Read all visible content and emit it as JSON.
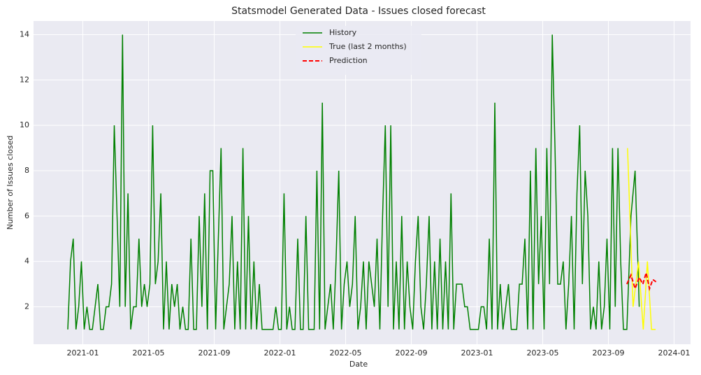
{
  "chart_data": {
    "type": "line",
    "title": "Statsmodel Generated Data - Issues closed forecast",
    "x_label": "Date",
    "y_label": "Number of Issues closed",
    "grid": true,
    "legend": "upper center",
    "xlim": [
      "2020-10",
      "2024-02"
    ],
    "xticks": [
      "2021-01",
      "2021-05",
      "2021-09",
      "2022-01",
      "2022-05",
      "2022-09",
      "2023-01",
      "2023-05",
      "2023-09",
      "2024-01"
    ],
    "ylim": [
      0.35,
      14.6
    ],
    "yticks": [
      2,
      4,
      6,
      8,
      10,
      12,
      14
    ],
    "series": [
      {
        "name": "History",
        "color": "#008000",
        "dash": false,
        "x": [
          "2020-12",
          "2020-12",
          "2020-12",
          "2020-12",
          "2020-12",
          "2020-12",
          "2021-01",
          "2021-01",
          "2021-01",
          "2021-01",
          "2021-01",
          "2021-01",
          "2021-02",
          "2021-02",
          "2021-02",
          "2021-02",
          "2021-02",
          "2021-02",
          "2021-03",
          "2021-03",
          "2021-03",
          "2021-03",
          "2021-03",
          "2021-03",
          "2021-04",
          "2021-04",
          "2021-04",
          "2021-04",
          "2021-04",
          "2021-04",
          "2021-05",
          "2021-05",
          "2021-05",
          "2021-05",
          "2021-05",
          "2021-05",
          "2021-06",
          "2021-06",
          "2021-06",
          "2021-06",
          "2021-06",
          "2021-06",
          "2021-07",
          "2021-07",
          "2021-07",
          "2021-07",
          "2021-07",
          "2021-07",
          "2021-08",
          "2021-08",
          "2021-08",
          "2021-08",
          "2021-08",
          "2021-08",
          "2021-09",
          "2021-09",
          "2021-09",
          "2021-09",
          "2021-09",
          "2021-09",
          "2021-10",
          "2021-10",
          "2021-10",
          "2021-10",
          "2021-10",
          "2021-10",
          "2021-11",
          "2021-11",
          "2021-11",
          "2021-11",
          "2021-11",
          "2021-11",
          "2021-12",
          "2021-12",
          "2021-12",
          "2021-12",
          "2021-12",
          "2021-12",
          "2022-01",
          "2022-01",
          "2022-01",
          "2022-01",
          "2022-01",
          "2022-01",
          "2022-02",
          "2022-02",
          "2022-02",
          "2022-02",
          "2022-02",
          "2022-02",
          "2022-03",
          "2022-03",
          "2022-03",
          "2022-03",
          "2022-03",
          "2022-03",
          "2022-04",
          "2022-04",
          "2022-04",
          "2022-04",
          "2022-04",
          "2022-04",
          "2022-05",
          "2022-05",
          "2022-05",
          "2022-05",
          "2022-05",
          "2022-05",
          "2022-06",
          "2022-06",
          "2022-06",
          "2022-06",
          "2022-06",
          "2022-06",
          "2022-07",
          "2022-07",
          "2022-07",
          "2022-07",
          "2022-07",
          "2022-07",
          "2022-08",
          "2022-08",
          "2022-08",
          "2022-08",
          "2022-08",
          "2022-08",
          "2022-09",
          "2022-09",
          "2022-09",
          "2022-09",
          "2022-09",
          "2022-09",
          "2022-10",
          "2022-10",
          "2022-10",
          "2022-10",
          "2022-10",
          "2022-10",
          "2022-11",
          "2022-11",
          "2022-11",
          "2022-11",
          "2022-11",
          "2022-11",
          "2022-12",
          "2022-12",
          "2022-12",
          "2022-12",
          "2022-12",
          "2022-12",
          "2023-01",
          "2023-01",
          "2023-01",
          "2023-01",
          "2023-01",
          "2023-01",
          "2023-02",
          "2023-02",
          "2023-02",
          "2023-02",
          "2023-02",
          "2023-02",
          "2023-03",
          "2023-03",
          "2023-03",
          "2023-03",
          "2023-03",
          "2023-03",
          "2023-04",
          "2023-04",
          "2023-04",
          "2023-04",
          "2023-04",
          "2023-04",
          "2023-05",
          "2023-05",
          "2023-05",
          "2023-05",
          "2023-05",
          "2023-05",
          "2023-06",
          "2023-06",
          "2023-06",
          "2023-06",
          "2023-06",
          "2023-06",
          "2023-07",
          "2023-07",
          "2023-07",
          "2023-07",
          "2023-07",
          "2023-07",
          "2023-08",
          "2023-08",
          "2023-08",
          "2023-08",
          "2023-08",
          "2023-08",
          "2023-09",
          "2023-09",
          "2023-09",
          "2023-09",
          "2023-09",
          "2023-09",
          "2023-10",
          "2023-10",
          "2023-10",
          "2023-10"
        ],
        "values": [
          1,
          4,
          5,
          1,
          2,
          4,
          1,
          2,
          1,
          1,
          2,
          3,
          1,
          1,
          2,
          2,
          3,
          10,
          6,
          2,
          14,
          2,
          7,
          1,
          2,
          2,
          5,
          2,
          3,
          2,
          3,
          10,
          3,
          4,
          7,
          1,
          4,
          1,
          3,
          2,
          3,
          1,
          2,
          1,
          1,
          5,
          1,
          1,
          6,
          2,
          7,
          1,
          8,
          8,
          1,
          5,
          9,
          1,
          2,
          3,
          6,
          1,
          4,
          1,
          9,
          1,
          6,
          1,
          4,
          1,
          3,
          1,
          1,
          1,
          1,
          1,
          2,
          1,
          1,
          7,
          1,
          2,
          1,
          1,
          5,
          1,
          1,
          6,
          1,
          1,
          1,
          8,
          1,
          11,
          1,
          2,
          3,
          1,
          4,
          8,
          1,
          3,
          4,
          2,
          3,
          6,
          1,
          2,
          4,
          1,
          4,
          3,
          2,
          5,
          1,
          6,
          10,
          2,
          10,
          1,
          4,
          1,
          6,
          1,
          4,
          2,
          1,
          4,
          6,
          2,
          1,
          3,
          6,
          1,
          4,
          1,
          5,
          1,
          4,
          1,
          7,
          1,
          3,
          3,
          3,
          2,
          2,
          1,
          1,
          1,
          1,
          2,
          2,
          1,
          5,
          1,
          11,
          1,
          3,
          1,
          2,
          3,
          1,
          1,
          1,
          3,
          3,
          5,
          1,
          8,
          1,
          9,
          3,
          6,
          1,
          9,
          3,
          14,
          9,
          3,
          3,
          4,
          1,
          3,
          6,
          1,
          7,
          10,
          3,
          8,
          6,
          1,
          2,
          1,
          4,
          1,
          2,
          5,
          1,
          9,
          2,
          9,
          4,
          1,
          1,
          6,
          8,
          2
        ]
      },
      {
        "name": "True (last 2 months)",
        "color": "#ffff00",
        "dash": false,
        "x": [
          "2023-10",
          "2023-10",
          "2023-10",
          "2023-11",
          "2023-11",
          "2023-11",
          "2023-11"
        ],
        "values": [
          9,
          2,
          4,
          1,
          4,
          1,
          1
        ]
      },
      {
        "name": "Prediction",
        "color": "#ff0000",
        "dash": true,
        "x": [
          "2023-10",
          "2023-10",
          "2023-10",
          "2023-10",
          "2023-11",
          "2023-11",
          "2023-11",
          "2023-11",
          "2023-11"
        ],
        "values": [
          3,
          3.4,
          2.8,
          3.3,
          3,
          3.5,
          2.8,
          3.2,
          3.1
        ]
      }
    ]
  }
}
